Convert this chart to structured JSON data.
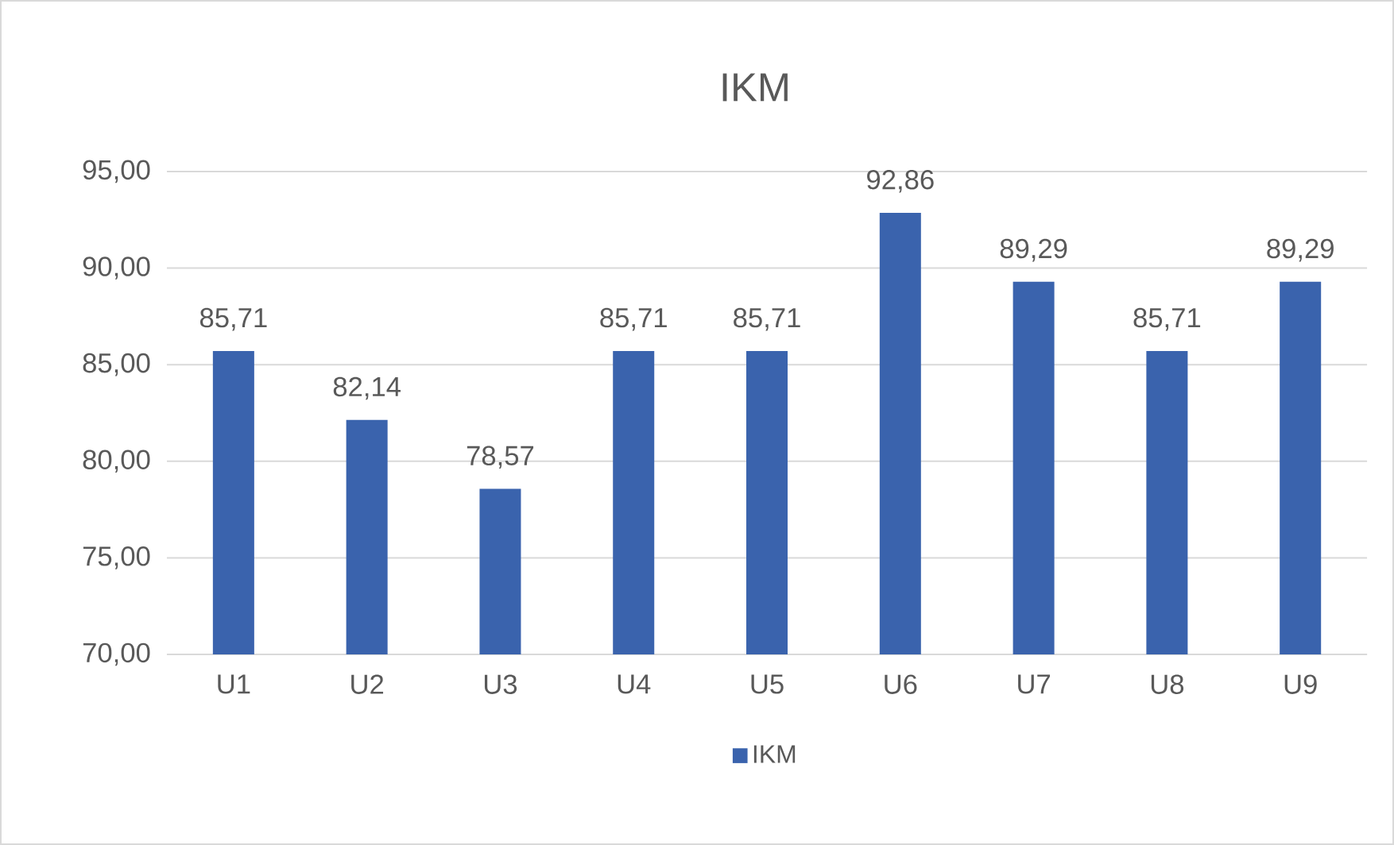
{
  "chart_data": {
    "type": "bar",
    "title": "IKM",
    "categories": [
      "U1",
      "U2",
      "U3",
      "U4",
      "U5",
      "U6",
      "U7",
      "U8",
      "U9"
    ],
    "series": [
      {
        "name": "IKM",
        "color": "#3a63ad",
        "values": [
          85.71,
          82.14,
          78.57,
          85.71,
          85.71,
          92.86,
          89.29,
          85.71,
          89.29
        ],
        "value_labels": [
          "85,71",
          "82,14",
          "78,57",
          "85,71",
          "85,71",
          "92,86",
          "89,29",
          "85,71",
          "89,29"
        ]
      }
    ],
    "ylim": [
      70,
      95
    ],
    "yticks": [
      {
        "value": 70,
        "label": "70,00"
      },
      {
        "value": 75,
        "label": "75,00"
      },
      {
        "value": 80,
        "label": "80,00"
      },
      {
        "value": 85,
        "label": "85,00"
      },
      {
        "value": 90,
        "label": "90,00"
      },
      {
        "value": 95,
        "label": "95,00"
      }
    ],
    "grid": "y",
    "legend": "bottom"
  }
}
